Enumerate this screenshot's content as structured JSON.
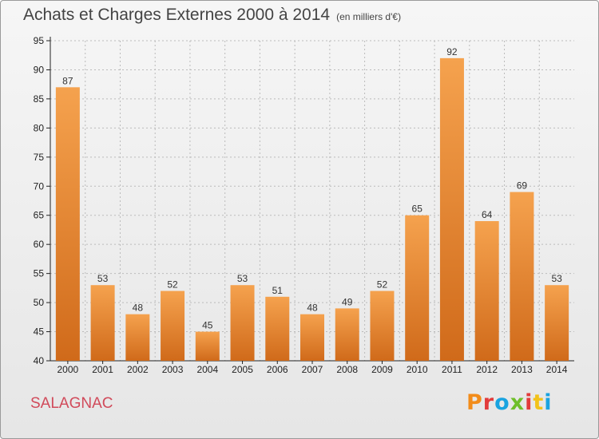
{
  "header": {
    "title": "Achats et Charges Externes 2000 à 2014",
    "unit": "(en milliers d'€)"
  },
  "footer": {
    "commune": "SALAGNAC",
    "brand": "Proxiti",
    "brand_colors": [
      "#f28c1a",
      "#e23b3b",
      "#1aa3e0",
      "#6fbf2a",
      "#e23b3b",
      "#f2c21a",
      "#1aa3e0"
    ]
  },
  "colors": {
    "bar_light": "#f5a24e",
    "bar_dark": "#d06a1a",
    "axis": "#222222",
    "grid": "#bbbbbb"
  },
  "chart_data": {
    "type": "bar",
    "categories": [
      "2000",
      "2001",
      "2002",
      "2003",
      "2004",
      "2005",
      "2006",
      "2007",
      "2008",
      "2009",
      "2010",
      "2011",
      "2012",
      "2013",
      "2014"
    ],
    "values": [
      87,
      53,
      48,
      52,
      45,
      53,
      51,
      48,
      49,
      52,
      65,
      92,
      64,
      69,
      53
    ],
    "ylim": [
      40,
      95
    ],
    "yticks": [
      40,
      45,
      50,
      55,
      60,
      65,
      70,
      75,
      80,
      85,
      90,
      95
    ],
    "grid": true,
    "data_labels": true
  }
}
